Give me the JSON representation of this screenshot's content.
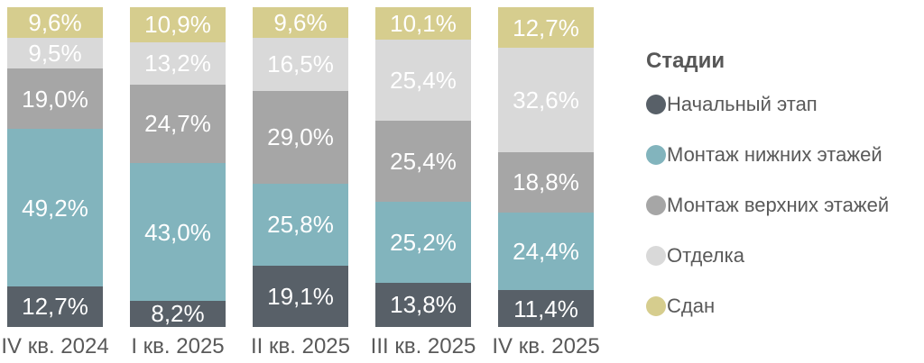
{
  "chart_data": {
    "type": "bar",
    "variant": "stacked-100-percent",
    "orientation": "vertical",
    "grid": false,
    "legend_position": "right",
    "legend_title": "Стадии",
    "value_label_format": "one-decimal comma percent, white, inside segment",
    "categories": [
      "IV кв. 2024",
      "I кв. 2025",
      "II кв. 2025",
      "III кв. 2025",
      "IV кв. 2025"
    ],
    "series": [
      {
        "name": "Начальный этап",
        "color": "#586068",
        "values": [
          12.7,
          8.2,
          19.1,
          13.8,
          11.4
        ]
      },
      {
        "name": "Монтаж нижних этажей",
        "color": "#82b4bd",
        "values": [
          49.2,
          43.0,
          25.8,
          25.2,
          24.4
        ]
      },
      {
        "name": "Монтаж верхних этажей",
        "color": "#a6a6a6",
        "values": [
          19.0,
          24.7,
          29.0,
          25.4,
          18.8
        ]
      },
      {
        "name": "Отделка",
        "color": "#d9d9d9",
        "values": [
          9.5,
          13.2,
          16.5,
          25.4,
          32.6
        ]
      },
      {
        "name": "Сдан",
        "color": "#d6cd8e",
        "values": [
          9.6,
          10.9,
          9.6,
          10.1,
          12.7
        ]
      }
    ],
    "segment_labels": [
      [
        "12,7%",
        "8,2%",
        "19,1%",
        "13,8%",
        "11,4%"
      ],
      [
        "49,2%",
        "43,0%",
        "25,8%",
        "25,2%",
        "24,4%"
      ],
      [
        "19,0%",
        "24,7%",
        "29,0%",
        "25,4%",
        "18,8%"
      ],
      [
        "9,5%",
        "13,2%",
        "16,5%",
        "25,4%",
        "32,6%"
      ],
      [
        "9,6%",
        "10,9%",
        "9,6%",
        "10,1%",
        "12,7%"
      ]
    ],
    "colors": {
      "axis_label_text": "#595959",
      "legend_text": "#595959",
      "legend_title_text": "#575757",
      "value_label_text": "#ffffff",
      "background": "#ffffff"
    }
  }
}
